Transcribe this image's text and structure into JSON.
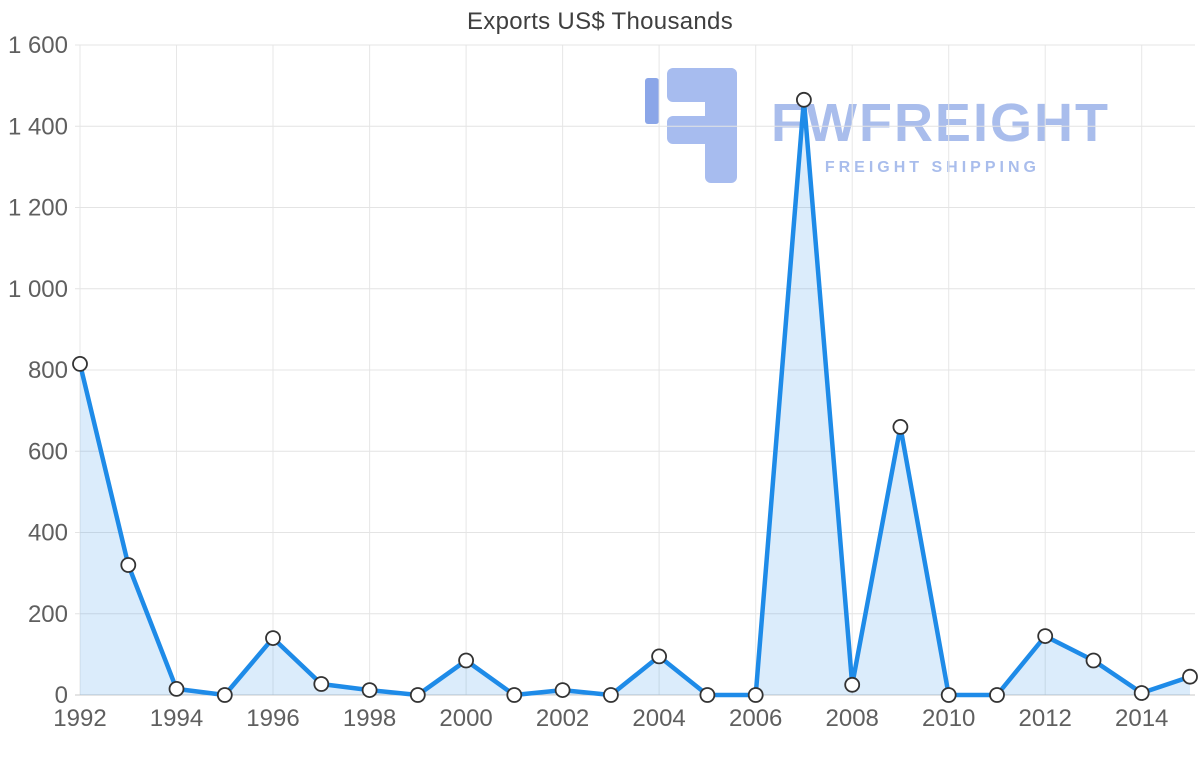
{
  "title": "Exports US$ Thousands",
  "watermark": {
    "brand": "FWFREIGHT",
    "tagline": "FREIGHT SHIPPING",
    "color": "#a9bdec",
    "logo_color": "#a7bcef",
    "logo_accent_color": "#8ba6e8"
  },
  "chart_data": {
    "type": "area",
    "title": "Exports US$ Thousands",
    "x": [
      1992,
      1993,
      1994,
      1995,
      1996,
      1997,
      1998,
      1999,
      2000,
      2001,
      2002,
      2003,
      2004,
      2005,
      2006,
      2007,
      2008,
      2009,
      2010,
      2011,
      2012,
      2013,
      2014,
      2015
    ],
    "values": [
      815,
      320,
      15,
      0,
      140,
      27,
      12,
      0,
      85,
      0,
      12,
      0,
      95,
      0,
      0,
      1465,
      25,
      660,
      0,
      0,
      145,
      85,
      5,
      45
    ],
    "xlabel": "",
    "ylabel": "",
    "ylim": [
      0,
      1600
    ],
    "ytick_step": 200,
    "ytick_labels": [
      "0",
      "200",
      "400",
      "600",
      "800",
      "1 000",
      "1 200",
      "1 400",
      "1 600"
    ],
    "xtick_labels": [
      "1992",
      "1994",
      "1996",
      "1998",
      "2000",
      "2002",
      "2004",
      "2006",
      "2008",
      "2010",
      "2012",
      "2014"
    ],
    "grid": true,
    "legend": "none",
    "line_color": "#1e8be8",
    "fill_color": "#1e8be8",
    "fill_opacity": 0.16,
    "marker_fill": "#ffffff",
    "marker_stroke": "#333333"
  }
}
